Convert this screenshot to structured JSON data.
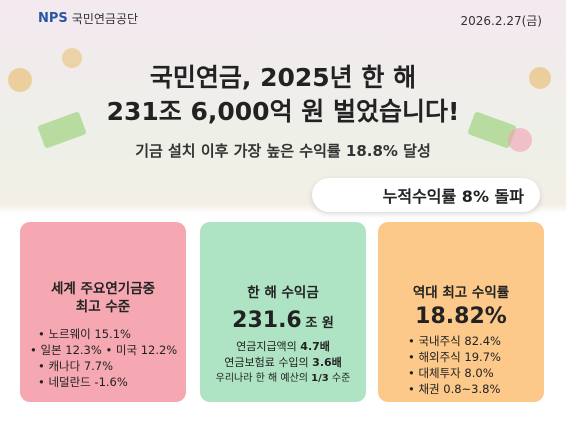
{
  "header": {
    "logo_mark": "NPS",
    "logo_text": "국민연금공단",
    "date": "2026.2.27(금)"
  },
  "headline": {
    "line1": "국민연금, 2025년 한 해",
    "line2": "231조 6,000억 원 벌었습니다!",
    "subtitle": "기금 설치 이후 가장 높은 수익률 18.8% 달성"
  },
  "badge": "누적수익률 8% 돌파",
  "cards": [
    {
      "title": [
        "세계 주요연기금중",
        "최고 수준"
      ],
      "items": [
        "• 노르웨이 15.1%",
        "• 일본 12.3%  • 미국 12.2%",
        "• 캐나다 7.7%",
        "• 네덜란드 -1.6%"
      ]
    },
    {
      "title": [
        "한 해 수익금"
      ],
      "value": "231.6",
      "unit": "조 원",
      "lines": [
        [
          "연금지급액의 ",
          "4.7배"
        ],
        [
          "연금보험료 수입의 ",
          "3.6배"
        ],
        [
          "우리나라 한 해 예산의 ",
          "1/3",
          " 수준"
        ]
      ]
    },
    {
      "title": [
        "역대 최고 수익률"
      ],
      "value": "18.82%",
      "items": [
        "• 국내주식 82.4%",
        "• 해외주식 19.7%",
        "• 대체투자 8.0%",
        "• 채권 0.8~3.8%"
      ]
    }
  ]
}
